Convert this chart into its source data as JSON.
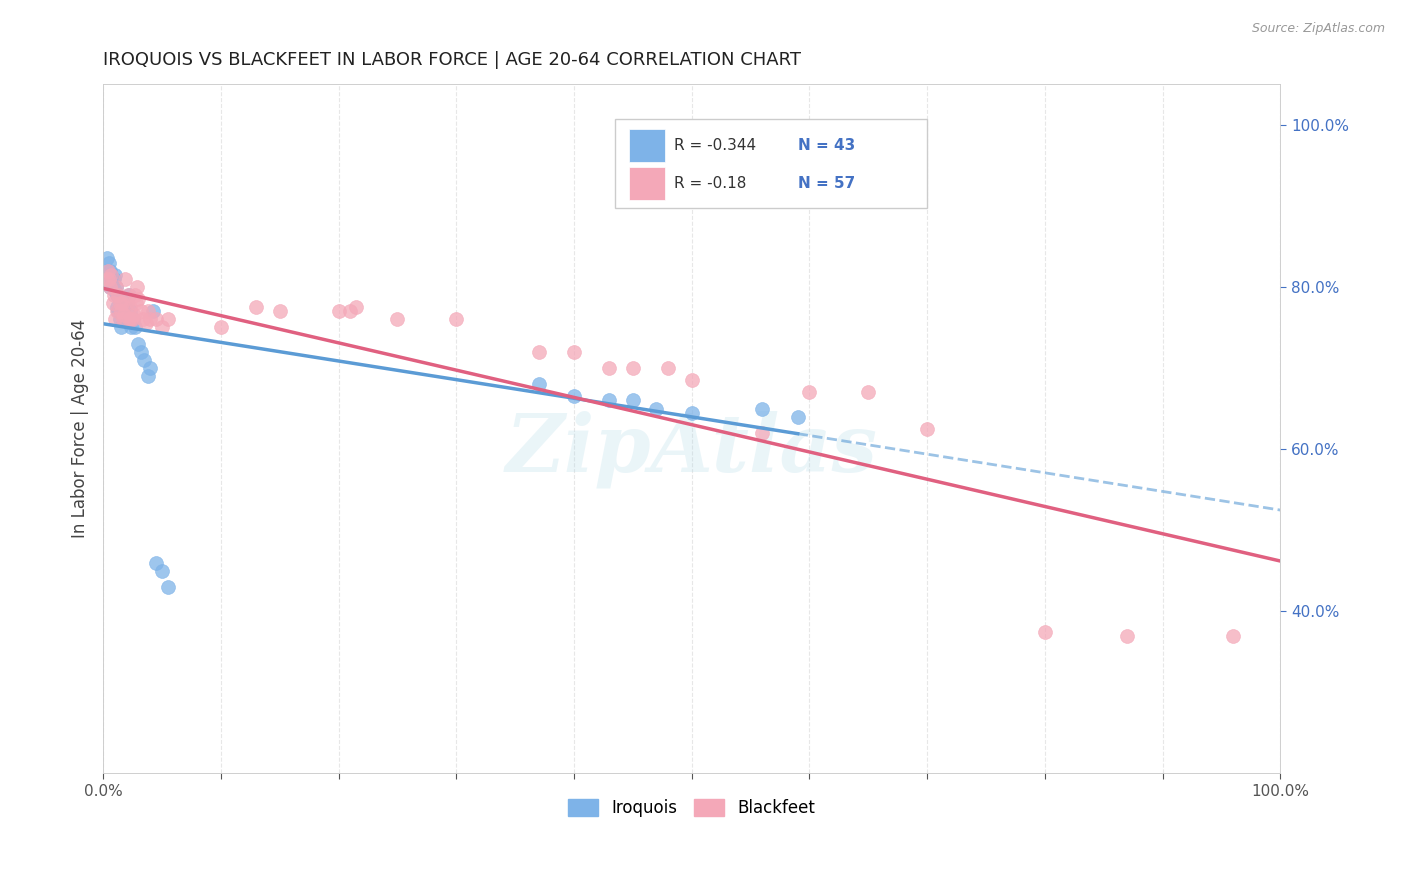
{
  "title": "IROQUOIS VS BLACKFEET IN LABOR FORCE | AGE 20-64 CORRELATION CHART",
  "source": "Source: ZipAtlas.com",
  "ylabel": "In Labor Force | Age 20-64",
  "watermark": "ZipAtlas",
  "iroquois_color": "#7EB3E8",
  "blackfeet_color": "#F4A8B8",
  "trend_blue": "#5B9BD5",
  "trend_pink": "#E06080",
  "iroquois_R": -0.344,
  "iroquois_N": 43,
  "blackfeet_R": -0.18,
  "blackfeet_N": 57,
  "iroquois_x": [
    0.003,
    0.004,
    0.005,
    0.005,
    0.006,
    0.006,
    0.007,
    0.008,
    0.009,
    0.01,
    0.01,
    0.011,
    0.012,
    0.012,
    0.013,
    0.014,
    0.015,
    0.016,
    0.018,
    0.02,
    0.021,
    0.022,
    0.023,
    0.024,
    0.025,
    0.027,
    0.03,
    0.032,
    0.035,
    0.038,
    0.04,
    0.042,
    0.045,
    0.05,
    0.055,
    0.37,
    0.4,
    0.43,
    0.45,
    0.47,
    0.5,
    0.56,
    0.59
  ],
  "iroquois_y": [
    0.835,
    0.82,
    0.81,
    0.83,
    0.8,
    0.82,
    0.81,
    0.8,
    0.81,
    0.815,
    0.795,
    0.8,
    0.775,
    0.79,
    0.77,
    0.76,
    0.75,
    0.78,
    0.775,
    0.78,
    0.76,
    0.79,
    0.77,
    0.75,
    0.76,
    0.75,
    0.73,
    0.72,
    0.71,
    0.69,
    0.7,
    0.77,
    0.46,
    0.45,
    0.43,
    0.68,
    0.665,
    0.66,
    0.66,
    0.65,
    0.645,
    0.65,
    0.64
  ],
  "blackfeet_x": [
    0.003,
    0.004,
    0.005,
    0.006,
    0.007,
    0.008,
    0.009,
    0.01,
    0.011,
    0.012,
    0.013,
    0.014,
    0.015,
    0.016,
    0.017,
    0.018,
    0.019,
    0.02,
    0.021,
    0.022,
    0.023,
    0.024,
    0.025,
    0.026,
    0.027,
    0.028,
    0.029,
    0.03,
    0.032,
    0.034,
    0.036,
    0.038,
    0.04,
    0.045,
    0.05,
    0.055,
    0.1,
    0.13,
    0.15,
    0.2,
    0.21,
    0.215,
    0.25,
    0.3,
    0.37,
    0.4,
    0.43,
    0.45,
    0.48,
    0.5,
    0.56,
    0.6,
    0.65,
    0.7,
    0.8,
    0.87,
    0.96
  ],
  "blackfeet_y": [
    0.81,
    0.82,
    0.81,
    0.8,
    0.815,
    0.78,
    0.79,
    0.76,
    0.8,
    0.77,
    0.79,
    0.78,
    0.77,
    0.78,
    0.76,
    0.765,
    0.81,
    0.78,
    0.79,
    0.76,
    0.775,
    0.76,
    0.76,
    0.765,
    0.79,
    0.78,
    0.8,
    0.785,
    0.77,
    0.76,
    0.755,
    0.77,
    0.76,
    0.76,
    0.75,
    0.76,
    0.75,
    0.775,
    0.77,
    0.77,
    0.77,
    0.775,
    0.76,
    0.76,
    0.72,
    0.72,
    0.7,
    0.7,
    0.7,
    0.685,
    0.62,
    0.67,
    0.67,
    0.625,
    0.375,
    0.37,
    0.37
  ],
  "xmin": 0.0,
  "xmax": 1.0,
  "ymin": 0.2,
  "ymax": 1.05,
  "right_y_ticks": [
    0.4,
    0.6,
    0.8,
    1.0
  ],
  "right_y_labels": [
    "40.0%",
    "60.0%",
    "80.0%",
    "100.0%"
  ],
  "x_ticks": [
    0.0,
    0.1,
    0.2,
    0.3,
    0.4,
    0.5,
    0.6,
    0.7,
    0.8,
    0.9,
    1.0
  ],
  "x_labels": [
    "0.0%",
    "",
    "",
    "",
    "",
    "",
    "",
    "",
    "",
    "",
    "100.0%"
  ],
  "background_color": "#FFFFFF",
  "grid_color": "#DDDDDD"
}
